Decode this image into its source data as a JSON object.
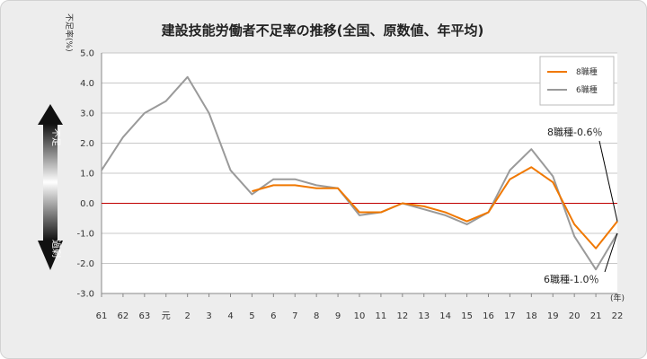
{
  "chart_data": {
    "type": "line",
    "title": "建設技能労働者不足率の推移(全国、原数値、年平均)",
    "ylabel": "不足率(%)",
    "xlabel_unit": "(年)",
    "ylim": [
      -3.0,
      5.0
    ],
    "yticks": [
      "5.0",
      "4.0",
      "3.0",
      "2.0",
      "1.0",
      "0.0",
      "-1.0",
      "-2.0",
      "-3.0"
    ],
    "categories": [
      "61",
      "62",
      "63",
      "元",
      "2",
      "3",
      "4",
      "5",
      "6",
      "7",
      "8",
      "9",
      "10",
      "11",
      "12",
      "13",
      "14",
      "15",
      "16",
      "17",
      "18",
      "19",
      "20",
      "21",
      "22"
    ],
    "series": [
      {
        "name": "8職種",
        "color": "#f07800",
        "values": [
          null,
          null,
          null,
          null,
          null,
          null,
          null,
          0.4,
          0.6,
          0.6,
          0.5,
          0.5,
          -0.3,
          -0.3,
          0.0,
          -0.1,
          -0.3,
          -0.6,
          -0.3,
          0.8,
          1.2,
          0.7,
          -0.7,
          -1.5,
          -0.6
        ]
      },
      {
        "name": "6職種",
        "color": "#9a9a9a",
        "values": [
          1.1,
          2.2,
          3.0,
          3.4,
          4.2,
          3.0,
          1.1,
          0.3,
          0.8,
          0.8,
          0.6,
          0.5,
          -0.4,
          -0.3,
          0.0,
          -0.2,
          -0.4,
          -0.7,
          -0.3,
          1.1,
          1.8,
          0.9,
          -1.1,
          -2.2,
          -1.0
        ]
      }
    ],
    "zero_line_color": "#c00000",
    "grid": true,
    "legend": "top-right",
    "annotations": [
      {
        "text": "8職種-0.6％",
        "series": 0,
        "category": "22"
      },
      {
        "text": "6職種-1.0％",
        "series": 1,
        "category": "22"
      }
    ],
    "side_arrow": {
      "top_label": "不足",
      "bottom_label": "過剰"
    }
  }
}
